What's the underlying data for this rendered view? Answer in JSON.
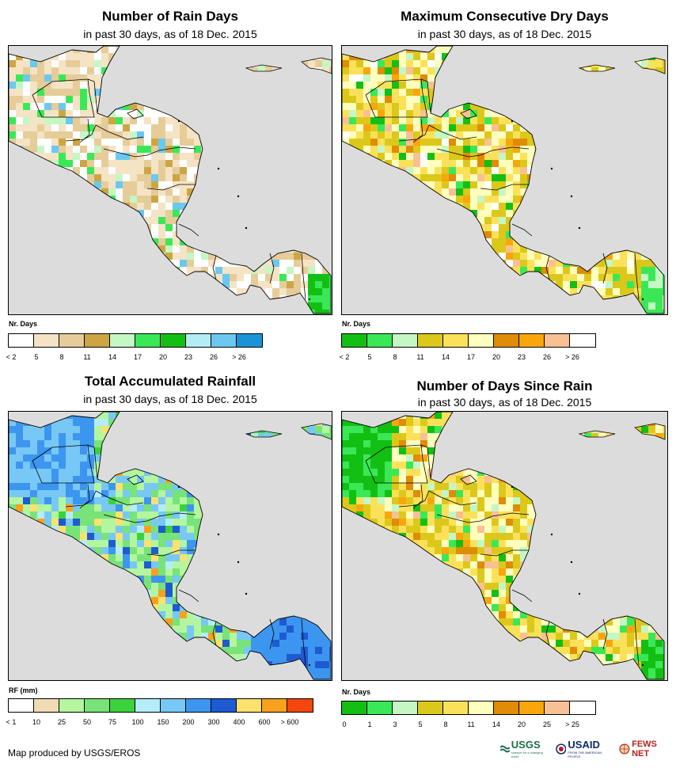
{
  "panels": [
    {
      "id": "rain-days",
      "title": "Number of Rain Days",
      "subtitle": "in past 30 days, as of 18 Dec. 2015",
      "unit": "Nr. Days",
      "palette": "rain",
      "legend": {
        "colors": [
          "#ffffff",
          "#f5e3c5",
          "#e6cc98",
          "#cda644",
          "#c4f7c4",
          "#3ae856",
          "#13bf13",
          "#b3ecf5",
          "#6cc8ef",
          "#1a94d6"
        ],
        "labels": [
          "< 2",
          "5",
          "8",
          "11",
          "14",
          "17",
          "20",
          "23",
          "26",
          "> 26"
        ]
      }
    },
    {
      "id": "max-dry-days",
      "title": "Maximum Consecutive Dry Days",
      "subtitle": "in past 30 days, as of 18 Dec. 2015",
      "unit": "Nr. Days",
      "palette": "dry",
      "legend": {
        "colors": [
          "#13bf13",
          "#3ae856",
          "#c4f7c4",
          "#dcc81a",
          "#fbe15a",
          "#ffffbe",
          "#df8c06",
          "#f9a60d",
          "#f9c094",
          "#ffffff"
        ],
        "labels": [
          "< 2",
          "5",
          "8",
          "11",
          "14",
          "17",
          "20",
          "23",
          "26",
          "> 26"
        ]
      }
    },
    {
      "id": "total-rainfall",
      "title": "Total Accumulated Rainfall",
      "subtitle": "in past 30 days, as of 18 Dec. 2015",
      "unit": "RF (mm)",
      "palette": "rf",
      "legend": {
        "colors": [
          "#ffffff",
          "#f0dcb4",
          "#b4f5a0",
          "#78e378",
          "#3cd23c",
          "#b4ecf8",
          "#78c8f5",
          "#3c96f0",
          "#1e5ad2",
          "#fbe16e",
          "#f9a01e",
          "#f5460f"
        ],
        "labels": [
          "< 1",
          "10",
          "25",
          "50",
          "75",
          "100",
          "150",
          "200",
          "300",
          "400",
          "600",
          "> 600"
        ]
      }
    },
    {
      "id": "days-since-rain",
      "title": "Number of Days Since Rain",
      "subtitle": "in past 30 days, as of 18 Dec. 2015",
      "unit": "Nr. Days",
      "palette": "since",
      "legend": {
        "colors": [
          "#13bf13",
          "#3ae856",
          "#c4f7c4",
          "#dcc81a",
          "#fbe15a",
          "#ffffbe",
          "#df8c06",
          "#f9a60d",
          "#f9c094",
          "#ffffff"
        ],
        "labels": [
          "0",
          "1",
          "3",
          "5",
          "8",
          "11",
          "14",
          "20",
          "25",
          "> 25"
        ]
      }
    }
  ],
  "footer": "Map produced by USGS/EROS",
  "logos": {
    "usgs": "USGS",
    "usgs_tag": "science for a changing world",
    "usaid": "USAID",
    "usaid_tag": "FROM THE AMERICAN PEOPLE",
    "fews": "FEWS NET"
  }
}
